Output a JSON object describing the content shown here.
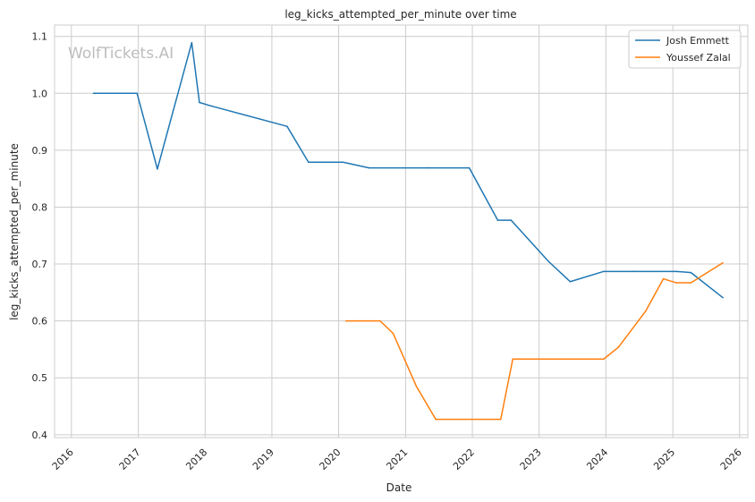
{
  "chart_data": {
    "type": "line",
    "title": "leg_kicks_attempted_per_minute over time",
    "xlabel": "Date",
    "ylabel": "leg_kicks_attempted_per_minute",
    "watermark": "WolfTickets.AI",
    "grid": true,
    "legend_position": "top-right",
    "xlim": [
      "2015-10-01",
      "2026-02-15"
    ],
    "ylim": [
      0.395,
      1.12
    ],
    "x_ticks": [
      "2016",
      "2017",
      "2018",
      "2019",
      "2020",
      "2021",
      "2022",
      "2023",
      "2024",
      "2025",
      "2026"
    ],
    "y_ticks": [
      "0.4",
      "0.5",
      "0.6",
      "0.7",
      "0.8",
      "0.9",
      "1.0",
      "1.1"
    ],
    "series": [
      {
        "name": "Josh Emmett",
        "color": "#1f77b4",
        "x": [
          "2016-05-01",
          "2016-12-25",
          "2017-04-15",
          "2017-10-20",
          "2017-12-01",
          "2018-02-01",
          "2019-03-25",
          "2019-07-20",
          "2020-01-25",
          "2020-06-15",
          "2021-05-01",
          "2021-12-15",
          "2022-05-20",
          "2022-08-01",
          "2023-02-20",
          "2023-06-20",
          "2023-12-20",
          "2024-06-01",
          "2025-01-20",
          "2025-04-10",
          "2025-10-01"
        ],
        "y": [
          1.0,
          1.0,
          0.867,
          1.089,
          0.984,
          0.978,
          0.942,
          0.879,
          0.879,
          0.869,
          0.869,
          0.869,
          0.777,
          0.777,
          0.705,
          0.669,
          0.687,
          0.687,
          0.687,
          0.685,
          0.641
        ]
      },
      {
        "name": "Youssef Zalal",
        "color": "#ff7f0e",
        "x": [
          "2020-02-10",
          "2020-08-15",
          "2020-10-25",
          "2021-03-01",
          "2021-06-15",
          "2022-06-05",
          "2022-08-10",
          "2023-12-20",
          "2024-03-10",
          "2024-08-05",
          "2024-11-10",
          "2025-01-20",
          "2025-04-10",
          "2025-10-01"
        ],
        "y": [
          0.6,
          0.6,
          0.578,
          0.485,
          0.427,
          0.427,
          0.533,
          0.533,
          0.554,
          0.617,
          0.674,
          0.667,
          0.667,
          0.702
        ]
      }
    ]
  }
}
